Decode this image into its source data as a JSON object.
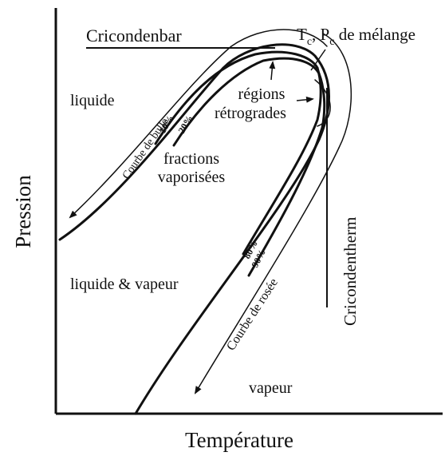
{
  "diagram": {
    "axes": {
      "y_label": "Pression",
      "x_label": "Température"
    },
    "labels": {
      "cricondenbar": "Cricondenbar",
      "critical_point": [
        "T",
        "c",
        ", P",
        "c",
        " de mélange"
      ],
      "liquid": "liquide",
      "bubble_curve": "Courbe de bulle",
      "q10": "10%",
      "q20": "20%",
      "fractions": [
        "fractions",
        "vaporisées"
      ],
      "retrograde": [
        "régions",
        "rétrogrades"
      ],
      "two_phase": "liquide & vapeur",
      "q80": "80%",
      "q90": "90%",
      "dew_curve": "Courbe de rosée",
      "cricondentherm": "Cricondentherm",
      "vapour": "vapeur"
    }
  }
}
